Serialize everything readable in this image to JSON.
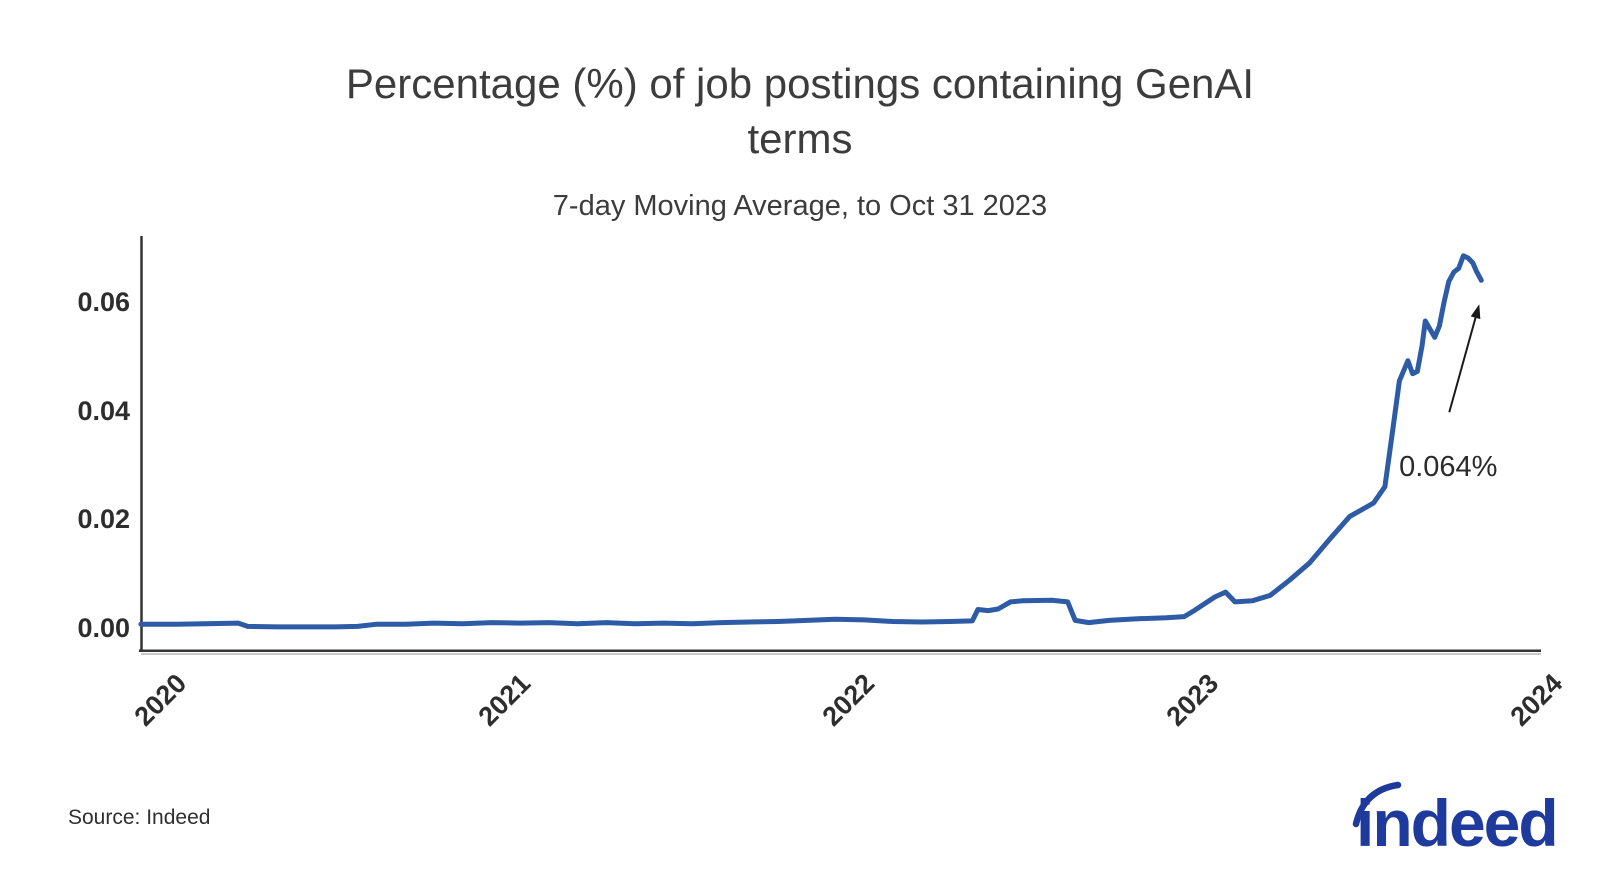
{
  "header": {
    "title": "Percentage (%) of job postings containing GenAI terms",
    "subtitle": "7-day Moving Average, to Oct 31 2023"
  },
  "footer": {
    "source": "Source: Indeed",
    "logo_text": "indeed"
  },
  "colors": {
    "line": "#2d5ba6",
    "axis": "#333333",
    "axis_shadow": "#c9c9c9",
    "tick_text": "#2d2d2d",
    "title_text": "#3c3c3c",
    "annotation_text": "#2b2b2b",
    "annotation_arrow": "#1a1a1a",
    "logo": "#1e3a9c",
    "background": "#ffffff"
  },
  "chart_data": {
    "type": "line",
    "title": "Percentage (%) of job postings containing GenAI terms",
    "subtitle": "7-day Moving Average, to Oct 31 2023",
    "xlabel": "",
    "ylabel": "",
    "grid": false,
    "legend": false,
    "y_unit": "% of job postings",
    "ylim": [
      -0.004,
      0.072
    ],
    "x_range": [
      "2019-12-08",
      "2024-01-01"
    ],
    "y_ticks": [
      {
        "label": "0.00",
        "value": 0.0
      },
      {
        "label": "0.02",
        "value": 0.02
      },
      {
        "label": "0.04",
        "value": 0.04
      },
      {
        "label": "0.06",
        "value": 0.06
      }
    ],
    "x_ticks": [
      {
        "label": "2020",
        "year": 2020
      },
      {
        "label": "2021",
        "year": 2021
      },
      {
        "label": "2022",
        "year": 2022
      },
      {
        "label": "2023",
        "year": 2023
      },
      {
        "label": "2024",
        "year": 2024
      }
    ],
    "annotation": {
      "text": "0.064%",
      "points_to": "last data point, Oct 31 2023"
    },
    "series": [
      {
        "name": "Share of job postings containing GenAI terms (7-day moving average)",
        "color": "#2d5ba6",
        "points": [
          [
            "2019-12-08",
            0.0007
          ],
          [
            "2020-01-15",
            0.0007
          ],
          [
            "2020-02-15",
            0.0008
          ],
          [
            "2020-03-20",
            0.0009
          ],
          [
            "2020-03-30",
            0.0003
          ],
          [
            "2020-05-01",
            0.0002
          ],
          [
            "2020-06-01",
            0.0002
          ],
          [
            "2020-07-01",
            0.0002
          ],
          [
            "2020-07-25",
            0.0003
          ],
          [
            "2020-08-15",
            0.0007
          ],
          [
            "2020-09-15",
            0.0007
          ],
          [
            "2020-10-15",
            0.0009
          ],
          [
            "2020-11-15",
            0.0008
          ],
          [
            "2020-12-15",
            0.001
          ],
          [
            "2021-01-15",
            0.0009
          ],
          [
            "2021-02-15",
            0.001
          ],
          [
            "2021-03-15",
            0.0008
          ],
          [
            "2021-04-15",
            0.001
          ],
          [
            "2021-05-15",
            0.0008
          ],
          [
            "2021-06-15",
            0.0009
          ],
          [
            "2021-07-15",
            0.0008
          ],
          [
            "2021-08-15",
            0.001
          ],
          [
            "2021-09-15",
            0.0011
          ],
          [
            "2021-10-15",
            0.0012
          ],
          [
            "2021-11-15",
            0.0014
          ],
          [
            "2021-12-15",
            0.0016
          ],
          [
            "2022-01-15",
            0.0015
          ],
          [
            "2022-02-15",
            0.0012
          ],
          [
            "2022-03-15",
            0.0011
          ],
          [
            "2022-04-15",
            0.0012
          ],
          [
            "2022-05-08",
            0.0013
          ],
          [
            "2022-05-14",
            0.0034
          ],
          [
            "2022-05-25",
            0.0032
          ],
          [
            "2022-06-05",
            0.0035
          ],
          [
            "2022-06-18",
            0.0048
          ],
          [
            "2022-07-01",
            0.005
          ],
          [
            "2022-08-01",
            0.0051
          ],
          [
            "2022-08-18",
            0.0048
          ],
          [
            "2022-08-26",
            0.0014
          ],
          [
            "2022-09-10",
            0.001
          ],
          [
            "2022-10-01",
            0.0014
          ],
          [
            "2022-11-01",
            0.0017
          ],
          [
            "2022-12-01",
            0.0019
          ],
          [
            "2022-12-20",
            0.0021
          ],
          [
            "2023-01-01",
            0.0033
          ],
          [
            "2023-01-22",
            0.0057
          ],
          [
            "2023-02-03",
            0.0066
          ],
          [
            "2023-02-13",
            0.0048
          ],
          [
            "2023-03-01",
            0.005
          ],
          [
            "2023-03-20",
            0.006
          ],
          [
            "2023-04-10",
            0.0088
          ],
          [
            "2023-05-01",
            0.012
          ],
          [
            "2023-05-23",
            0.0165
          ],
          [
            "2023-06-13",
            0.0205
          ],
          [
            "2023-06-23",
            0.0215
          ],
          [
            "2023-07-08",
            0.023
          ],
          [
            "2023-07-20",
            0.026
          ],
          [
            "2023-07-28",
            0.036
          ],
          [
            "2023-08-05",
            0.0455
          ],
          [
            "2023-08-14",
            0.0492
          ],
          [
            "2023-08-19",
            0.0468
          ],
          [
            "2023-08-24",
            0.0472
          ],
          [
            "2023-08-29",
            0.052
          ],
          [
            "2023-09-02",
            0.0565
          ],
          [
            "2023-09-07",
            0.055
          ],
          [
            "2023-09-12",
            0.0535
          ],
          [
            "2023-09-17",
            0.0556
          ],
          [
            "2023-09-22",
            0.06
          ],
          [
            "2023-09-27",
            0.0638
          ],
          [
            "2023-10-02",
            0.0655
          ],
          [
            "2023-10-07",
            0.0662
          ],
          [
            "2023-10-12",
            0.0685
          ],
          [
            "2023-10-17",
            0.0681
          ],
          [
            "2023-10-22",
            0.0672
          ],
          [
            "2023-10-26",
            0.0656
          ],
          [
            "2023-10-31",
            0.064
          ]
        ]
      }
    ]
  }
}
